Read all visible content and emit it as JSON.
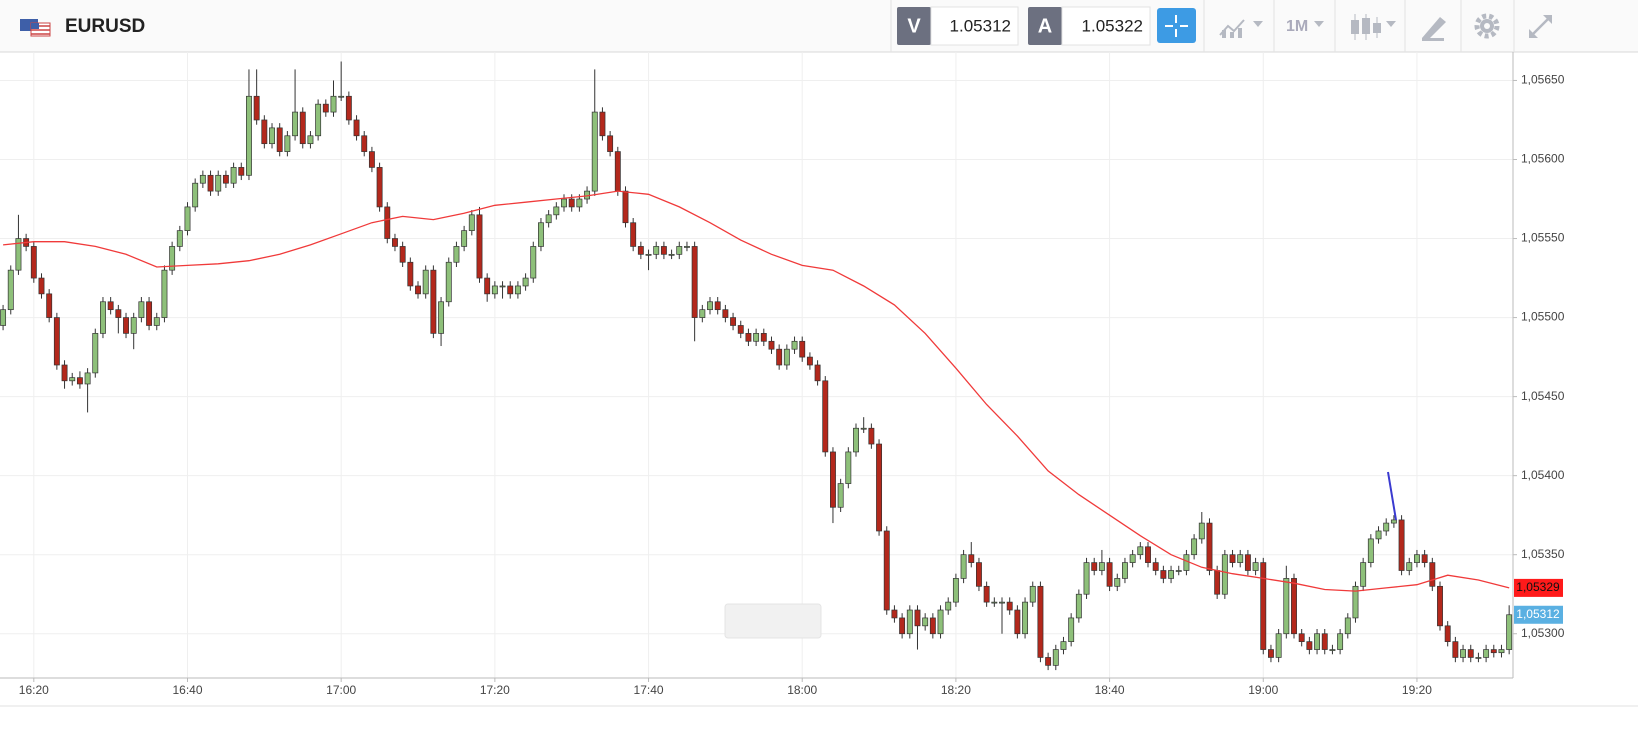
{
  "header": {
    "symbol": "EURUSD",
    "bid_label": "V",
    "bid": 1.05312,
    "ask_label": "A",
    "ask": 1.05322,
    "timeframe": "1M"
  },
  "chart_data": {
    "type": "candlestick",
    "x": [
      976,
      977,
      978,
      979,
      980,
      981,
      982,
      983,
      984,
      985,
      986,
      987,
      988,
      989,
      990,
      991,
      992,
      993,
      994,
      995,
      996,
      997,
      998,
      999,
      1000,
      1001,
      1002,
      1003,
      1004,
      1005,
      1006,
      1007,
      1008,
      1009,
      1010,
      1011,
      1012,
      1013,
      1014,
      1015,
      1016,
      1017,
      1018,
      1019,
      1020,
      1021,
      1022,
      1023,
      1024,
      1025,
      1026,
      1027,
      1028,
      1029,
      1030,
      1031,
      1032,
      1033,
      1034,
      1035,
      1036,
      1037,
      1038,
      1039,
      1040,
      1041,
      1042,
      1043,
      1044,
      1045,
      1046,
      1047,
      1048,
      1049,
      1050,
      1051,
      1052,
      1053,
      1054,
      1055,
      1056,
      1057,
      1058,
      1059,
      1060,
      1061,
      1062,
      1063,
      1064,
      1065,
      1066,
      1067,
      1068,
      1069,
      1070,
      1071,
      1072,
      1073,
      1074,
      1075,
      1076,
      1077,
      1078,
      1079,
      1080,
      1081,
      1082,
      1083,
      1084,
      1085,
      1086,
      1087,
      1088,
      1089,
      1090,
      1091,
      1092,
      1093,
      1094,
      1095,
      1096,
      1097,
      1098,
      1099,
      1100,
      1101,
      1102,
      1103,
      1104,
      1105,
      1106,
      1107,
      1108,
      1109,
      1110,
      1111,
      1112,
      1113,
      1114,
      1115,
      1116,
      1117,
      1118,
      1119,
      1120,
      1121,
      1122,
      1123,
      1124,
      1125,
      1126,
      1127,
      1128,
      1129,
      1130,
      1131,
      1132,
      1133,
      1134,
      1135,
      1136,
      1137,
      1138,
      1139,
      1140,
      1141,
      1142,
      1143,
      1144,
      1145,
      1146,
      1147,
      1148,
      1149,
      1150,
      1151,
      1152,
      1153,
      1154,
      1155,
      1156,
      1157,
      1158,
      1159,
      1160,
      1161,
      1162,
      1163,
      1164,
      1165,
      1166,
      1167,
      1168,
      1169,
      1170,
      1171,
      1172
    ],
    "open": [
      1.05495,
      1.05505,
      1.0553,
      1.0555,
      1.05545,
      1.05525,
      1.05515,
      1.055,
      1.0547,
      1.0546,
      1.05462,
      1.05458,
      1.05465,
      1.0549,
      1.0551,
      1.05505,
      1.055,
      1.0549,
      1.055,
      1.0551,
      1.05495,
      1.055,
      1.0553,
      1.05545,
      1.05555,
      1.0557,
      1.05585,
      1.0559,
      1.0558,
      1.0559,
      1.05585,
      1.05595,
      1.0559,
      1.0564,
      1.05625,
      1.0561,
      1.0562,
      1.05605,
      1.05615,
      1.0563,
      1.0561,
      1.05615,
      1.05635,
      1.0563,
      1.0564,
      1.0564,
      1.05625,
      1.05615,
      1.05605,
      1.05595,
      1.0557,
      1.0555,
      1.05545,
      1.05535,
      1.0552,
      1.05515,
      1.0553,
      1.0549,
      1.0551,
      1.05535,
      1.05545,
      1.05555,
      1.05565,
      1.05525,
      1.05515,
      1.0552,
      1.0552,
      1.05515,
      1.0552,
      1.05525,
      1.05545,
      1.0556,
      1.05565,
      1.0557,
      1.05575,
      1.0557,
      1.05575,
      1.0558,
      1.0563,
      1.05615,
      1.05605,
      1.0558,
      1.0556,
      1.05545,
      1.0554,
      1.0554,
      1.05545,
      1.0554,
      1.0554,
      1.05545,
      1.05545,
      1.055,
      1.05505,
      1.0551,
      1.05505,
      1.055,
      1.05495,
      1.0549,
      1.05485,
      1.0549,
      1.05485,
      1.0548,
      1.0547,
      1.0548,
      1.05485,
      1.05475,
      1.0547,
      1.0546,
      1.05415,
      1.0538,
      1.05395,
      1.05415,
      1.0543,
      1.0543,
      1.0542,
      1.05365,
      1.05315,
      1.0531,
      1.053,
      1.05315,
      1.05305,
      1.0531,
      1.053,
      1.05315,
      1.0532,
      1.05335,
      1.0535,
      1.05345,
      1.0533,
      1.0532,
      1.0532,
      1.0532,
      1.05315,
      1.053,
      1.0532,
      1.0533,
      1.05285,
      1.0528,
      1.0529,
      1.05295,
      1.0531,
      1.05325,
      1.05345,
      1.0534,
      1.05345,
      1.0533,
      1.05335,
      1.05345,
      1.0535,
      1.05355,
      1.05345,
      1.0534,
      1.05335,
      1.0534,
      1.0534,
      1.0535,
      1.0536,
      1.0537,
      1.0534,
      1.05325,
      1.0535,
      1.05345,
      1.0535,
      1.0534,
      1.05345,
      1.0529,
      1.05285,
      1.053,
      1.05335,
      1.053,
      1.05295,
      1.0529,
      1.053,
      1.0529,
      1.0529,
      1.053,
      1.0531,
      1.0533,
      1.05345,
      1.0536,
      1.05365,
      1.0537,
      1.05372,
      1.0534,
      1.05345,
      1.0535,
      1.05345,
      1.0533,
      1.05305,
      1.05295,
      1.05285,
      1.0529,
      1.05285,
      1.05285,
      1.0529,
      1.05288,
      1.0529
    ],
    "high": [
      1.05508,
      1.05533,
      1.05565,
      1.05553,
      1.05548,
      1.05528,
      1.05518,
      1.05503,
      1.05473,
      1.05465,
      1.05466,
      1.05468,
      1.05493,
      1.05513,
      1.05513,
      1.05508,
      1.05503,
      1.05503,
      1.05513,
      1.05513,
      1.05503,
      1.05533,
      1.05548,
      1.05558,
      1.05573,
      1.05588,
      1.05593,
      1.05593,
      1.05593,
      1.05593,
      1.05598,
      1.05598,
      1.05657,
      1.05657,
      1.05628,
      1.05623,
      1.05623,
      1.05618,
      1.05657,
      1.05633,
      1.05618,
      1.05638,
      1.05638,
      1.0565,
      1.05662,
      1.05643,
      1.05628,
      1.05618,
      1.05608,
      1.05598,
      1.05573,
      1.05553,
      1.05548,
      1.05538,
      1.05523,
      1.05533,
      1.05533,
      1.05513,
      1.05538,
      1.05548,
      1.05558,
      1.05568,
      1.0557,
      1.05528,
      1.05523,
      1.05523,
      1.05523,
      1.05523,
      1.05528,
      1.05548,
      1.05563,
      1.05568,
      1.05573,
      1.05578,
      1.05578,
      1.05578,
      1.05583,
      1.05657,
      1.05633,
      1.05618,
      1.05608,
      1.05583,
      1.05563,
      1.05548,
      1.05543,
      1.05548,
      1.05548,
      1.05543,
      1.05548,
      1.05548,
      1.05548,
      1.05508,
      1.05513,
      1.05513,
      1.05508,
      1.05503,
      1.05498,
      1.05493,
      1.05493,
      1.05493,
      1.05488,
      1.05483,
      1.05483,
      1.05488,
      1.05488,
      1.05478,
      1.05473,
      1.05463,
      1.05418,
      1.05398,
      1.05418,
      1.05433,
      1.05437,
      1.05433,
      1.05423,
      1.05368,
      1.05318,
      1.05313,
      1.05318,
      1.05318,
      1.05313,
      1.05313,
      1.05318,
      1.05323,
      1.05338,
      1.05353,
      1.05358,
      1.05348,
      1.05333,
      1.05323,
      1.05323,
      1.05323,
      1.05318,
      1.05323,
      1.05333,
      1.05333,
      1.05288,
      1.05293,
      1.05298,
      1.05313,
      1.05328,
      1.05348,
      1.05348,
      1.05353,
      1.05348,
      1.05338,
      1.05348,
      1.05353,
      1.05358,
      1.05358,
      1.05348,
      1.05343,
      1.05343,
      1.05343,
      1.05353,
      1.05363,
      1.05377,
      1.05373,
      1.05343,
      1.05353,
      1.05353,
      1.05353,
      1.05353,
      1.05348,
      1.05348,
      1.05293,
      1.05303,
      1.05343,
      1.05338,
      1.05303,
      1.05298,
      1.05303,
      1.05303,
      1.05293,
      1.05303,
      1.05313,
      1.05333,
      1.05348,
      1.05363,
      1.05368,
      1.05373,
      1.05375,
      1.05375,
      1.05348,
      1.05353,
      1.05353,
      1.05348,
      1.05333,
      1.05308,
      1.05298,
      1.05293,
      1.05293,
      1.05288,
      1.05293,
      1.05293,
      1.05293,
      1.05318
    ],
    "low": [
      1.05492,
      1.05502,
      1.05527,
      1.05542,
      1.05522,
      1.05512,
      1.05497,
      1.05467,
      1.05455,
      1.05457,
      1.05455,
      1.0544,
      1.05462,
      1.05487,
      1.05502,
      1.0549,
      1.05487,
      1.0548,
      1.05497,
      1.05492,
      1.05492,
      1.05497,
      1.05527,
      1.05542,
      1.05552,
      1.05567,
      1.05582,
      1.05577,
      1.05577,
      1.05582,
      1.05582,
      1.05587,
      1.05587,
      1.05622,
      1.05607,
      1.05607,
      1.05602,
      1.05602,
      1.05612,
      1.05607,
      1.05607,
      1.05612,
      1.05627,
      1.05627,
      1.05637,
      1.05622,
      1.05612,
      1.05602,
      1.05592,
      1.05567,
      1.05547,
      1.05542,
      1.05532,
      1.05517,
      1.05512,
      1.05512,
      1.05487,
      1.05482,
      1.05507,
      1.05532,
      1.05542,
      1.05552,
      1.05522,
      1.0551,
      1.05512,
      1.05512,
      1.05512,
      1.05512,
      1.05517,
      1.05522,
      1.05542,
      1.05557,
      1.05562,
      1.05567,
      1.05567,
      1.05567,
      1.05572,
      1.05577,
      1.05612,
      1.05602,
      1.05577,
      1.05557,
      1.05542,
      1.05537,
      1.0553,
      1.05537,
      1.05537,
      1.05537,
      1.05537,
      1.05542,
      1.05485,
      1.05497,
      1.05502,
      1.05502,
      1.05497,
      1.05492,
      1.05487,
      1.05482,
      1.05482,
      1.05482,
      1.05477,
      1.05467,
      1.05467,
      1.05477,
      1.05472,
      1.05467,
      1.05457,
      1.05412,
      1.0537,
      1.05377,
      1.05392,
      1.05412,
      1.05427,
      1.05417,
      1.05362,
      1.05312,
      1.05307,
      1.05297,
      1.05297,
      1.0529,
      1.05302,
      1.05297,
      1.05297,
      1.05312,
      1.05317,
      1.05332,
      1.05342,
      1.05327,
      1.05317,
      1.05317,
      1.053,
      1.05312,
      1.05297,
      1.05297,
      1.05317,
      1.05282,
      1.05277,
      1.05277,
      1.05287,
      1.05292,
      1.05307,
      1.05322,
      1.05337,
      1.05337,
      1.05327,
      1.05327,
      1.05332,
      1.05342,
      1.05347,
      1.05342,
      1.05337,
      1.05332,
      1.05332,
      1.05337,
      1.05337,
      1.05347,
      1.05357,
      1.05337,
      1.05322,
      1.05322,
      1.05342,
      1.05342,
      1.05337,
      1.05337,
      1.05287,
      1.05282,
      1.05282,
      1.05297,
      1.05297,
      1.05292,
      1.05287,
      1.05287,
      1.05287,
      1.05287,
      1.05287,
      1.05297,
      1.05307,
      1.05327,
      1.05342,
      1.05357,
      1.05362,
      1.05367,
      1.05337,
      1.05337,
      1.05342,
      1.05342,
      1.05327,
      1.05302,
      1.05292,
      1.05282,
      1.05282,
      1.05282,
      1.05282,
      1.05282,
      1.05285,
      1.05285,
      1.05287
    ],
    "close": [
      1.05505,
      1.0553,
      1.0555,
      1.05545,
      1.05525,
      1.05515,
      1.055,
      1.0547,
      1.0546,
      1.05462,
      1.05458,
      1.05465,
      1.0549,
      1.0551,
      1.05505,
      1.055,
      1.0549,
      1.055,
      1.0551,
      1.05495,
      1.055,
      1.0553,
      1.05545,
      1.05555,
      1.0557,
      1.05585,
      1.0559,
      1.0558,
      1.0559,
      1.05585,
      1.05595,
      1.0559,
      1.0564,
      1.05625,
      1.0561,
      1.0562,
      1.05605,
      1.05615,
      1.0563,
      1.0561,
      1.05615,
      1.05635,
      1.0563,
      1.0564,
      1.0564,
      1.05625,
      1.05615,
      1.05605,
      1.05595,
      1.0557,
      1.0555,
      1.05545,
      1.05535,
      1.0552,
      1.05515,
      1.0553,
      1.0549,
      1.0551,
      1.05535,
      1.05545,
      1.05555,
      1.05565,
      1.05525,
      1.05515,
      1.0552,
      1.0552,
      1.05515,
      1.0552,
      1.05525,
      1.05545,
      1.0556,
      1.05565,
      1.0557,
      1.05575,
      1.0557,
      1.05575,
      1.0558,
      1.0563,
      1.05615,
      1.05605,
      1.0558,
      1.0556,
      1.05545,
      1.0554,
      1.0554,
      1.05545,
      1.0554,
      1.0554,
      1.05545,
      1.05545,
      1.055,
      1.05505,
      1.0551,
      1.05505,
      1.055,
      1.05495,
      1.0549,
      1.05485,
      1.0549,
      1.05485,
      1.0548,
      1.0547,
      1.0548,
      1.05485,
      1.05475,
      1.0547,
      1.0546,
      1.05415,
      1.0538,
      1.05395,
      1.05415,
      1.0543,
      1.0543,
      1.0542,
      1.05365,
      1.05315,
      1.0531,
      1.053,
      1.05315,
      1.05305,
      1.0531,
      1.053,
      1.05315,
      1.0532,
      1.05335,
      1.0535,
      1.05345,
      1.0533,
      1.0532,
      1.0532,
      1.0532,
      1.05315,
      1.053,
      1.0532,
      1.0533,
      1.05285,
      1.0528,
      1.0529,
      1.05295,
      1.0531,
      1.05325,
      1.05345,
      1.0534,
      1.05345,
      1.0533,
      1.05335,
      1.05345,
      1.0535,
      1.05355,
      1.05345,
      1.0534,
      1.05335,
      1.0534,
      1.0534,
      1.0535,
      1.0536,
      1.0537,
      1.0534,
      1.05325,
      1.0535,
      1.05345,
      1.0535,
      1.0534,
      1.05345,
      1.0529,
      1.05285,
      1.053,
      1.05335,
      1.053,
      1.05295,
      1.0529,
      1.053,
      1.0529,
      1.0529,
      1.053,
      1.0531,
      1.0533,
      1.05345,
      1.0536,
      1.05365,
      1.0537,
      1.05372,
      1.0534,
      1.05345,
      1.0535,
      1.05345,
      1.0533,
      1.05305,
      1.05295,
      1.05285,
      1.0529,
      1.05285,
      1.05285,
      1.0529,
      1.05288,
      1.0529,
      1.05312
    ],
    "up_color": "#8ec07a",
    "down_color": "#b3281c",
    "ma": {
      "color": "#f03a3a",
      "x": [
        976,
        980,
        984,
        988,
        992,
        996,
        1000,
        1004,
        1008,
        1012,
        1016,
        1020,
        1024,
        1028,
        1032,
        1036,
        1040,
        1044,
        1048,
        1052,
        1056,
        1060,
        1064,
        1068,
        1072,
        1076,
        1080,
        1084,
        1088,
        1092,
        1096,
        1100,
        1104,
        1108,
        1112,
        1116,
        1120,
        1124,
        1128,
        1132,
        1136,
        1140,
        1144,
        1148,
        1152,
        1156,
        1160,
        1164,
        1168,
        1172
      ],
      "values": [
        1.05546,
        1.05548,
        1.05548,
        1.05545,
        1.0554,
        1.05532,
        1.05533,
        1.05534,
        1.05536,
        1.0554,
        1.05546,
        1.05553,
        1.0556,
        1.05564,
        1.05562,
        1.05566,
        1.05571,
        1.05573,
        1.05575,
        1.05577,
        1.0558,
        1.05578,
        1.0557,
        1.0556,
        1.05549,
        1.0554,
        1.05533,
        1.0553,
        1.0552,
        1.05508,
        1.0549,
        1.05468,
        1.05445,
        1.05425,
        1.05403,
        1.05388,
        1.05375,
        1.05362,
        1.0535,
        1.05342,
        1.05338,
        1.05335,
        1.05332,
        1.05328,
        1.05327,
        1.05329,
        1.05331,
        1.05337,
        1.05334,
        1.05329
      ]
    },
    "ma_last": {
      "value": 1.05329,
      "label": "1,05329",
      "color": "#ff1a1a"
    },
    "last_price": {
      "value": 1.05312,
      "label": "1,05312",
      "color": "#5ab0e2"
    },
    "xlim": [
      975.6,
      1172.5
    ],
    "ylim": [
      1.05272,
      1.05668
    ],
    "xticks": [
      {
        "value": 980,
        "label": "16:20"
      },
      {
        "value": 1000,
        "label": "16:40"
      },
      {
        "value": 1020,
        "label": "17:00"
      },
      {
        "value": 1040,
        "label": "17:20"
      },
      {
        "value": 1060,
        "label": "17:40"
      },
      {
        "value": 1080,
        "label": "18:00"
      },
      {
        "value": 1100,
        "label": "18:20"
      },
      {
        "value": 1120,
        "label": "18:40"
      },
      {
        "value": 1140,
        "label": "19:00"
      },
      {
        "value": 1160,
        "label": "19:20"
      }
    ],
    "yticks": [
      {
        "value": 1.053,
        "label": "1,05300"
      },
      {
        "value": 1.0535,
        "label": "1,05350"
      },
      {
        "value": 1.054,
        "label": "1,05400"
      },
      {
        "value": 1.0545,
        "label": "1,05450"
      },
      {
        "value": 1.055,
        "label": "1,05500"
      },
      {
        "value": 1.0555,
        "label": "1,05550"
      },
      {
        "value": 1.056,
        "label": "1,05600"
      },
      {
        "value": 1.0565,
        "label": "1,05650"
      }
    ],
    "grid": true
  }
}
